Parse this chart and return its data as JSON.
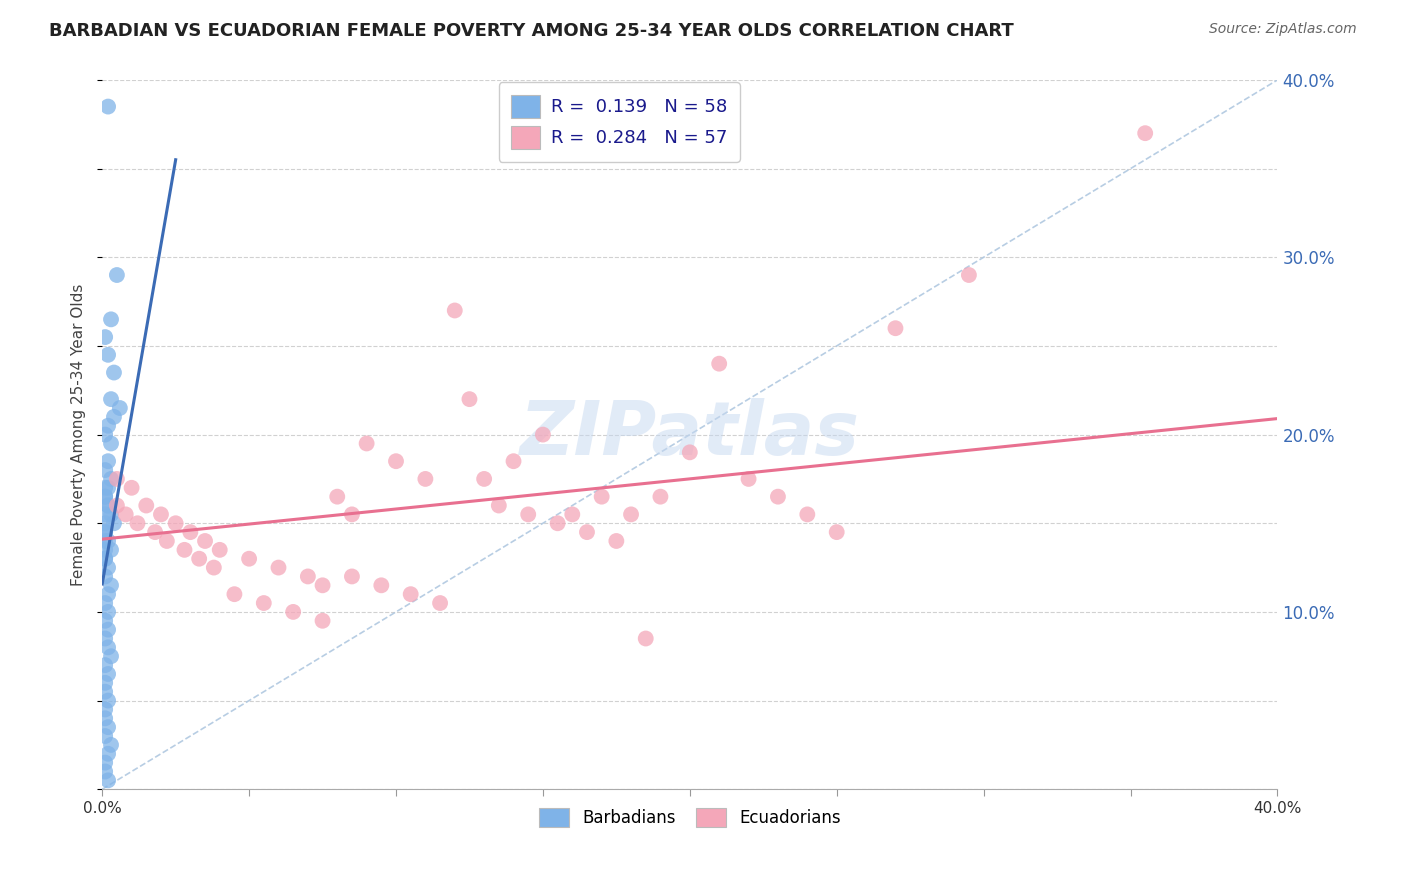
{
  "title": "BARBADIAN VS ECUADORIAN FEMALE POVERTY AMONG 25-34 YEAR OLDS CORRELATION CHART",
  "source": "Source: ZipAtlas.com",
  "ylabel": "Female Poverty Among 25-34 Year Olds",
  "xlim": [
    0.0,
    0.4
  ],
  "ylim": [
    0.0,
    0.4
  ],
  "yticks_right": [
    0.1,
    0.2,
    0.3,
    0.4
  ],
  "blue_R": 0.139,
  "blue_N": 58,
  "pink_R": 0.284,
  "pink_N": 57,
  "blue_color": "#7FB3E8",
  "pink_color": "#F4A7B9",
  "blue_line_color": "#3B6BB5",
  "pink_line_color": "#E87090",
  "diag_color": "#B0C8E0",
  "watermark": "ZIPatlas",
  "legend_text_color": "#1a1a8c",
  "right_axis_color": "#3B6BB5",
  "xaxis_label_color": "#333333",
  "grid_color": "#CCCCCC",
  "blue_scatter_x": [
    0.002,
    0.005,
    0.003,
    0.001,
    0.002,
    0.004,
    0.003,
    0.006,
    0.004,
    0.002,
    0.001,
    0.003,
    0.002,
    0.001,
    0.003,
    0.002,
    0.001,
    0.002,
    0.003,
    0.004,
    0.001,
    0.002,
    0.003,
    0.001,
    0.002,
    0.001,
    0.003,
    0.002,
    0.001,
    0.002,
    0.001,
    0.002,
    0.001,
    0.002,
    0.003,
    0.001,
    0.002,
    0.001,
    0.001,
    0.002,
    0.001,
    0.001,
    0.002,
    0.001,
    0.003,
    0.002,
    0.001,
    0.001,
    0.002,
    0.001,
    0.001,
    0.002,
    0.001,
    0.001,
    0.001,
    0.001,
    0.001,
    0.001
  ],
  "blue_scatter_y": [
    0.385,
    0.29,
    0.265,
    0.255,
    0.245,
    0.235,
    0.22,
    0.215,
    0.21,
    0.205,
    0.2,
    0.195,
    0.185,
    0.18,
    0.175,
    0.17,
    0.165,
    0.16,
    0.155,
    0.15,
    0.145,
    0.14,
    0.135,
    0.13,
    0.125,
    0.12,
    0.115,
    0.11,
    0.105,
    0.1,
    0.095,
    0.09,
    0.085,
    0.08,
    0.075,
    0.07,
    0.065,
    0.06,
    0.055,
    0.05,
    0.045,
    0.04,
    0.035,
    0.03,
    0.025,
    0.02,
    0.015,
    0.01,
    0.005,
    0.17,
    0.165,
    0.16,
    0.155,
    0.15,
    0.145,
    0.14,
    0.135,
    0.13
  ],
  "pink_scatter_x": [
    0.355,
    0.27,
    0.005,
    0.01,
    0.015,
    0.02,
    0.025,
    0.03,
    0.035,
    0.04,
    0.05,
    0.06,
    0.07,
    0.075,
    0.08,
    0.085,
    0.09,
    0.1,
    0.11,
    0.12,
    0.125,
    0.13,
    0.14,
    0.15,
    0.16,
    0.17,
    0.18,
    0.19,
    0.2,
    0.21,
    0.22,
    0.23,
    0.24,
    0.25,
    0.005,
    0.008,
    0.012,
    0.018,
    0.022,
    0.028,
    0.033,
    0.038,
    0.045,
    0.055,
    0.065,
    0.075,
    0.085,
    0.095,
    0.105,
    0.115,
    0.135,
    0.145,
    0.155,
    0.165,
    0.175,
    0.185,
    0.295
  ],
  "pink_scatter_y": [
    0.37,
    0.26,
    0.175,
    0.17,
    0.16,
    0.155,
    0.15,
    0.145,
    0.14,
    0.135,
    0.13,
    0.125,
    0.12,
    0.115,
    0.165,
    0.155,
    0.195,
    0.185,
    0.175,
    0.27,
    0.22,
    0.175,
    0.185,
    0.2,
    0.155,
    0.165,
    0.155,
    0.165,
    0.19,
    0.24,
    0.175,
    0.165,
    0.155,
    0.145,
    0.16,
    0.155,
    0.15,
    0.145,
    0.14,
    0.135,
    0.13,
    0.125,
    0.11,
    0.105,
    0.1,
    0.095,
    0.12,
    0.115,
    0.11,
    0.105,
    0.16,
    0.155,
    0.15,
    0.145,
    0.14,
    0.085,
    0.29
  ]
}
